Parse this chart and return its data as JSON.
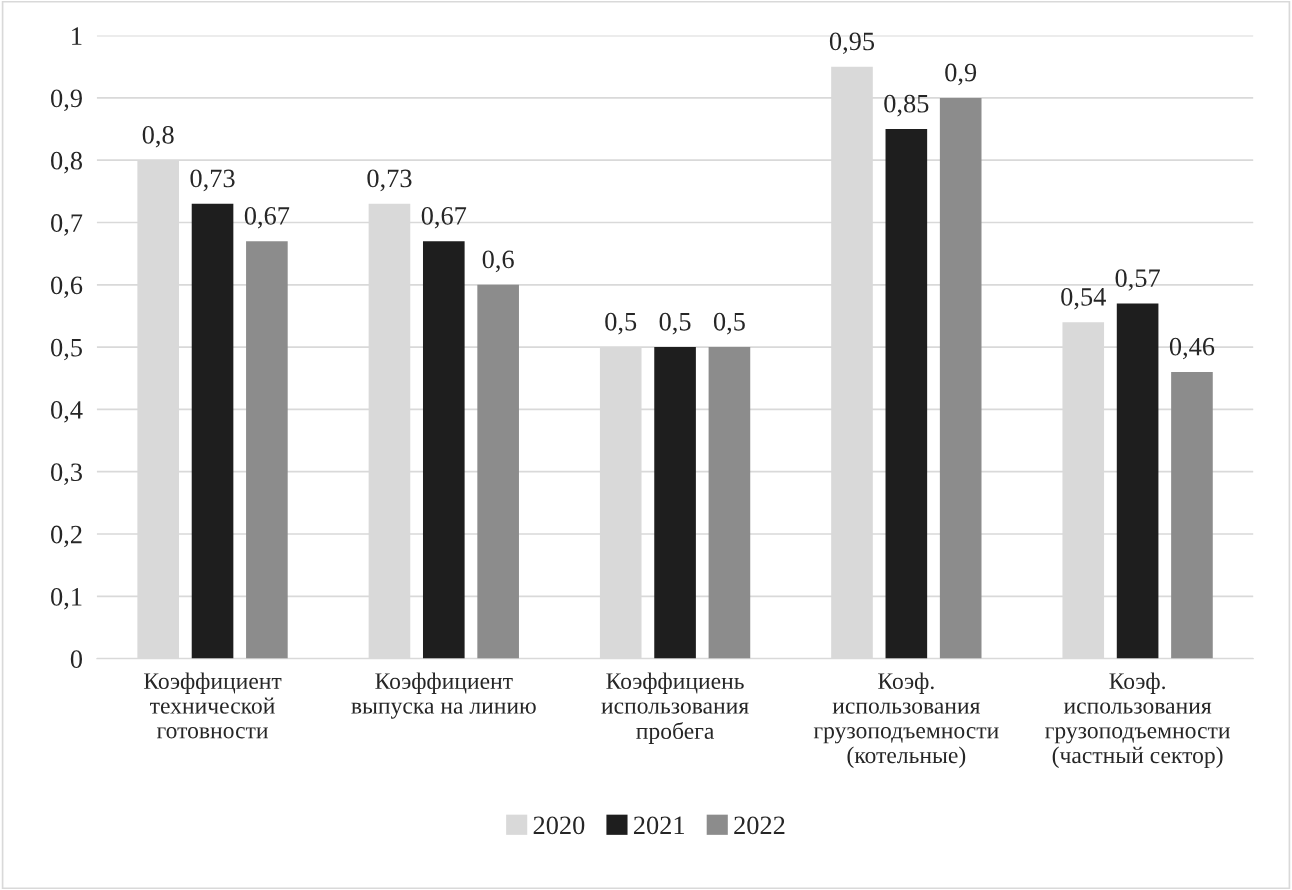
{
  "chart_data": {
    "type": "bar",
    "categories": [
      "Коэффициент\nтехнической\nготовности",
      "Коэффициент\nвыпуска на линию",
      "Коэффициень\nиспользования\nпробега",
      "Коэф.\nиспользования\nгрузоподъемности\n(котельные)",
      "Коэф.\nиспользования\nгрузоподъемности\n(частный сектор)"
    ],
    "series": [
      {
        "name": "2020",
        "color": "#d9d9d9",
        "values": [
          0.8,
          0.73,
          0.5,
          0.95,
          0.54
        ],
        "value_labels": [
          "0,8",
          "0,73",
          "0,5",
          "0,95",
          "0,54"
        ]
      },
      {
        "name": "2021",
        "color": "#1e1e1e",
        "values": [
          0.73,
          0.67,
          0.5,
          0.85,
          0.57
        ],
        "value_labels": [
          "0,73",
          "0,67",
          "0,5",
          "0,85",
          "0,57"
        ]
      },
      {
        "name": "2022",
        "color": "#8c8c8c",
        "values": [
          0.67,
          0.6,
          0.5,
          0.9,
          0.46
        ],
        "value_labels": [
          "0,67",
          "0,6",
          "0,5",
          "0,9",
          "0,46"
        ]
      }
    ],
    "ylim": [
      0,
      1
    ],
    "yticks": [
      0,
      {
        "value": 0.1,
        "label": "0,1"
      },
      {
        "value": 0.2,
        "label": "0,2"
      },
      {
        "value": 0.3,
        "label": "0,3"
      },
      {
        "value": 0.4,
        "label": "0,4"
      },
      {
        "value": 0.5,
        "label": "0,5"
      },
      {
        "value": 0.6,
        "label": "0,6"
      },
      {
        "value": 0.7,
        "label": "0,7"
      },
      {
        "value": 0.8,
        "label": "0,8"
      },
      {
        "value": 0.9,
        "label": "0,9"
      },
      1
    ],
    "grid": "y",
    "legend": "bottom"
  }
}
